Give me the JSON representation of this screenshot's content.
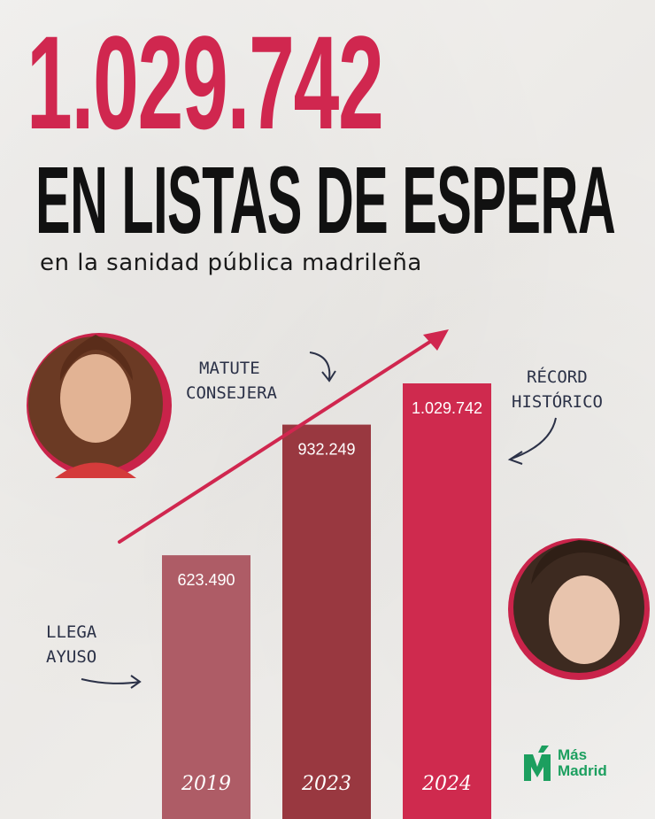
{
  "headline": {
    "number": "1.029.742",
    "text": "EN LISTAS DE ESPERA",
    "subtitle": "en la sanidad pública madrileña"
  },
  "annotations": {
    "matute": [
      "MATUTE",
      "CONSEJERA"
    ],
    "record": [
      "RÉCORD",
      "HISTÓRICO"
    ],
    "ayuso": [
      "LLEGA",
      "AYUSO"
    ]
  },
  "logo": {
    "line1": "Más",
    "line2": "Madrid"
  },
  "colors": {
    "accent": "#d0274f",
    "bar2019": "#ae5c66",
    "bar2023": "#993840",
    "bar2024": "#cf2a4e",
    "logo": "#1c9f5f"
  },
  "chart_data": {
    "type": "bar",
    "categories": [
      "2019",
      "2023",
      "2024"
    ],
    "values": [
      623490,
      932249,
      1029742
    ],
    "value_labels": [
      "623.490",
      "932.249",
      "1.029.742"
    ],
    "title": "",
    "xlabel": "",
    "ylabel": "",
    "grid": false,
    "legend": "none"
  }
}
